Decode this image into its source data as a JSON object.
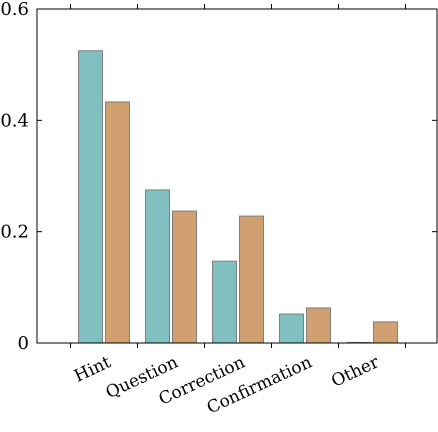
{
  "chart_data": {
    "type": "bar",
    "categories": [
      "Hint",
      "Question",
      "Correction",
      "Confirmation",
      "Other"
    ],
    "series": [
      {
        "values": [
          0.525,
          0.275,
          0.147,
          0.052,
          0.0
        ],
        "color": "#80c0c0"
      },
      {
        "values": [
          0.433,
          0.237,
          0.228,
          0.063,
          0.038
        ],
        "color": "#d1a071"
      }
    ],
    "yticks": [
      0,
      0.2,
      0.4,
      0.6
    ],
    "ytick_labels": [
      "0",
      "0.2",
      "0.4",
      "0.6"
    ],
    "ylim": [
      0,
      0.6
    ],
    "grid": false,
    "bar_edge_color": "#7f7f7f"
  }
}
